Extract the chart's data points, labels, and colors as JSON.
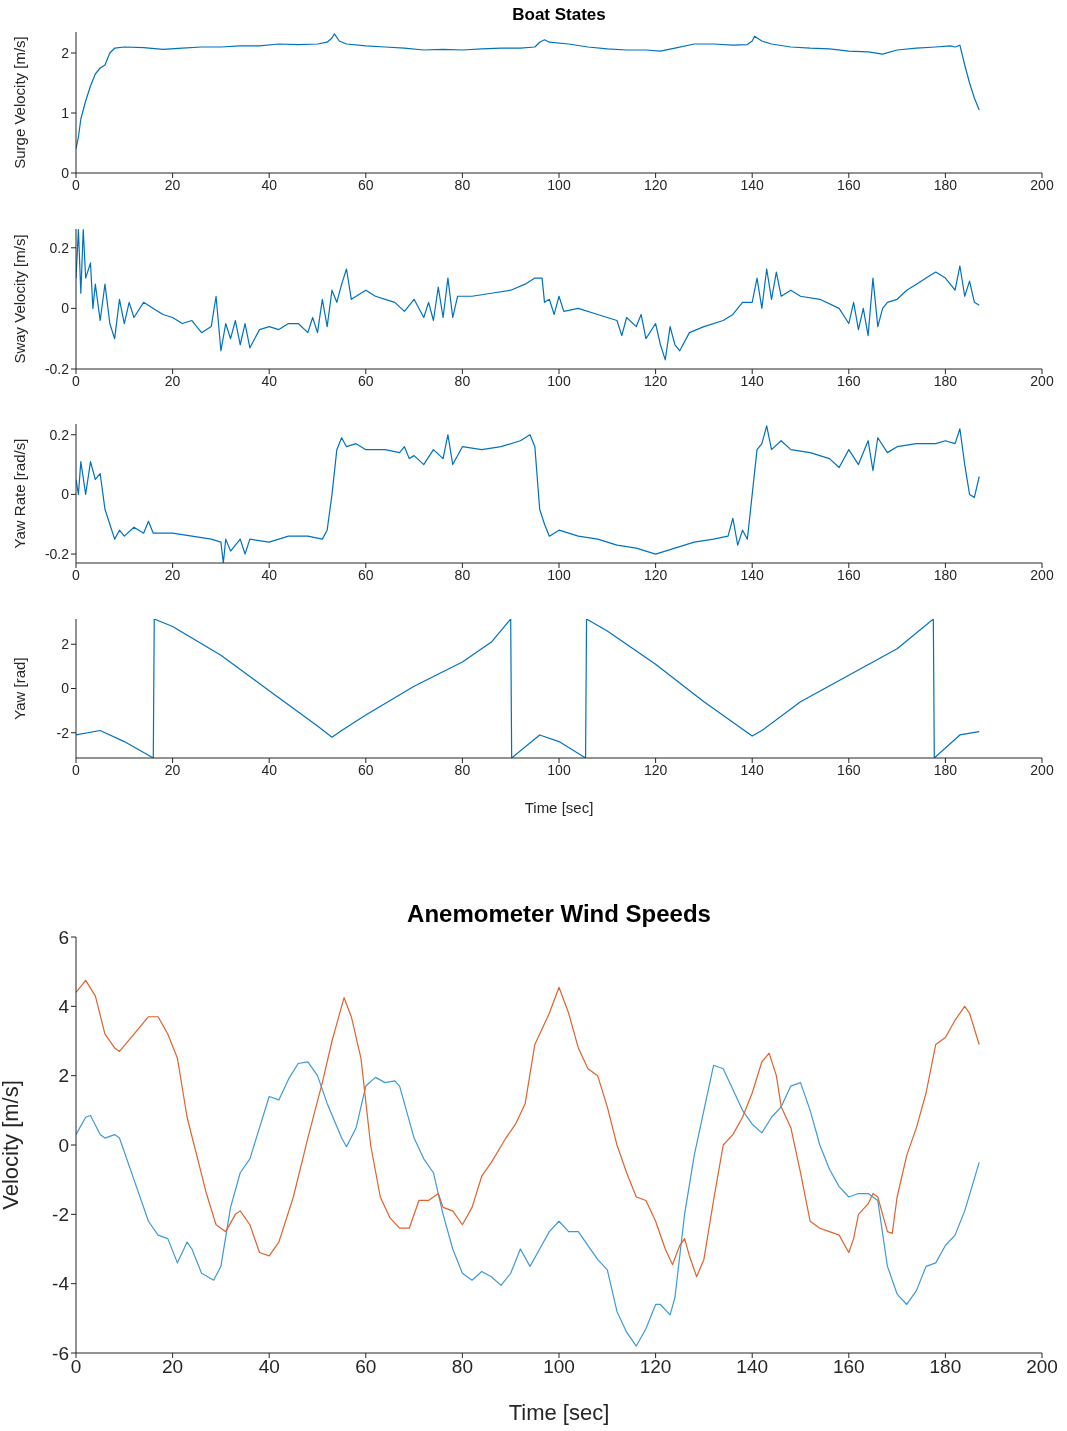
{
  "chart_data": [
    {
      "type": "line",
      "title": "Boat States",
      "ylabel": "Surge Velocity [m/s]",
      "xlim": [
        0,
        200
      ],
      "xticks": [
        0,
        20,
        40,
        60,
        80,
        100,
        120,
        140,
        160,
        180,
        200
      ],
      "ylim": [
        0,
        2.35
      ],
      "yticks": [
        0,
        1,
        2
      ],
      "x": [
        0,
        0.5,
        1,
        2,
        3,
        4,
        5,
        6,
        7,
        8,
        10,
        14,
        18,
        22,
        26,
        30,
        34,
        38,
        42,
        46,
        50,
        52,
        53,
        53.5,
        54.5,
        56,
        60,
        64,
        68,
        72,
        76,
        80,
        84,
        88,
        92,
        95,
        96,
        97,
        98,
        102,
        106,
        110,
        114,
        118,
        121,
        124,
        128,
        132,
        136,
        139,
        140,
        140.5,
        142,
        144,
        148,
        152,
        156,
        160,
        164,
        167,
        170,
        174,
        178,
        181,
        182,
        183,
        184,
        185,
        186,
        187
      ],
      "series": [
        {
          "color": "#0072bd",
          "values": [
            0.4,
            0.6,
            0.9,
            1.2,
            1.45,
            1.65,
            1.75,
            1.8,
            2.0,
            2.08,
            2.1,
            2.09,
            2.06,
            2.08,
            2.1,
            2.1,
            2.12,
            2.12,
            2.15,
            2.14,
            2.15,
            2.18,
            2.25,
            2.32,
            2.2,
            2.15,
            2.12,
            2.1,
            2.08,
            2.05,
            2.06,
            2.05,
            2.07,
            2.08,
            2.08,
            2.1,
            2.18,
            2.22,
            2.18,
            2.15,
            2.1,
            2.07,
            2.05,
            2.05,
            2.03,
            2.08,
            2.15,
            2.15,
            2.13,
            2.14,
            2.2,
            2.28,
            2.2,
            2.15,
            2.1,
            2.08,
            2.07,
            2.03,
            2.02,
            1.98,
            2.05,
            2.08,
            2.1,
            2.12,
            2.1,
            2.13,
            1.8,
            1.5,
            1.25,
            1.05
          ]
        }
      ]
    },
    {
      "type": "line",
      "ylabel": "Sway Velocity [m/s]",
      "xlim": [
        0,
        200
      ],
      "xticks": [
        0,
        20,
        40,
        60,
        80,
        100,
        120,
        140,
        160,
        180,
        200
      ],
      "ylim": [
        -0.2,
        0.262
      ],
      "yticks": [
        -0.2,
        0,
        0.2
      ],
      "x": [
        0,
        0.5,
        1,
        1.5,
        2,
        3,
        3.5,
        4,
        5,
        6,
        7,
        8,
        9,
        10,
        11,
        12,
        14,
        16,
        18,
        20,
        22,
        24,
        26,
        28,
        29,
        30,
        31,
        32,
        33,
        34,
        35,
        36,
        38,
        40,
        42,
        44,
        46,
        48,
        49,
        50,
        51,
        52,
        53,
        54,
        55,
        56,
        57,
        60,
        62,
        64,
        66,
        68,
        70,
        72,
        73,
        74,
        75,
        76,
        77,
        78,
        79,
        82,
        86,
        90,
        93,
        95,
        96.5,
        97,
        98,
        99,
        100,
        101,
        104,
        108,
        112,
        113,
        114,
        116,
        117,
        118,
        120,
        121,
        122,
        123,
        124,
        125,
        127,
        130,
        134,
        136,
        138,
        140,
        141,
        142,
        143,
        144,
        145,
        146,
        148,
        150,
        154,
        158,
        160,
        161,
        162,
        163,
        164,
        165,
        166,
        167,
        168,
        170,
        172,
        174,
        176,
        178,
        180,
        182,
        183,
        184,
        185,
        186,
        187
      ],
      "series": [
        {
          "color": "#0072bd",
          "values": [
            0.1,
            0.26,
            0.05,
            0.26,
            0.1,
            0.15,
            0.0,
            0.08,
            -0.04,
            0.08,
            -0.05,
            -0.1,
            0.03,
            -0.05,
            0.02,
            -0.03,
            0.02,
            0.0,
            -0.02,
            -0.03,
            -0.05,
            -0.04,
            -0.08,
            -0.06,
            0.04,
            -0.14,
            -0.05,
            -0.1,
            -0.04,
            -0.12,
            -0.05,
            -0.13,
            -0.07,
            -0.06,
            -0.07,
            -0.05,
            -0.05,
            -0.08,
            -0.03,
            -0.08,
            0.03,
            -0.06,
            0.06,
            0.02,
            0.08,
            0.13,
            0.03,
            0.06,
            0.04,
            0.03,
            0.02,
            -0.01,
            0.03,
            -0.03,
            0.02,
            -0.04,
            0.07,
            -0.03,
            0.1,
            -0.03,
            0.04,
            0.04,
            0.05,
            0.06,
            0.08,
            0.1,
            0.1,
            0.02,
            0.03,
            -0.02,
            0.04,
            -0.01,
            0.0,
            -0.02,
            -0.04,
            -0.09,
            -0.03,
            -0.06,
            -0.02,
            -0.1,
            -0.05,
            -0.12,
            -0.17,
            -0.06,
            -0.12,
            -0.14,
            -0.08,
            -0.06,
            -0.04,
            -0.02,
            0.02,
            0.02,
            0.1,
            0.0,
            0.13,
            0.03,
            0.12,
            0.04,
            0.06,
            0.04,
            0.03,
            0.0,
            -0.05,
            0.02,
            -0.07,
            0.0,
            -0.09,
            0.1,
            -0.06,
            0.0,
            0.02,
            0.03,
            0.06,
            0.08,
            0.1,
            0.12,
            0.1,
            0.06,
            0.14,
            0.04,
            0.09,
            0.02,
            0.01
          ]
        }
      ]
    },
    {
      "type": "line",
      "ylabel": "Yaw Rate [rad/s]",
      "xlim": [
        0,
        200
      ],
      "xticks": [
        0,
        20,
        40,
        60,
        80,
        100,
        120,
        140,
        160,
        180,
        200
      ],
      "ylim": [
        -0.23,
        0.236
      ],
      "yticks": [
        -0.2,
        0,
        0.2
      ],
      "x": [
        0,
        0.5,
        1,
        2,
        3,
        4,
        5,
        6,
        7,
        8,
        9,
        10,
        12,
        14,
        15,
        16,
        20,
        24,
        28,
        30,
        30.5,
        31,
        32,
        34,
        35,
        36,
        40,
        44,
        48,
        51,
        52,
        53,
        54,
        55,
        56,
        58,
        60,
        64,
        67,
        68,
        69,
        70,
        72,
        74,
        76,
        77,
        78,
        80,
        84,
        88,
        92,
        94,
        95,
        96,
        97,
        98,
        100,
        104,
        108,
        112,
        116,
        120,
        124,
        128,
        132,
        135,
        136,
        137,
        138,
        139,
        140,
        141,
        142,
        143,
        144,
        146,
        148,
        152,
        156,
        158,
        160,
        162,
        164,
        165,
        166,
        168,
        170,
        174,
        178,
        180,
        182,
        183,
        184,
        185,
        186,
        187
      ],
      "series": [
        {
          "color": "#0072bd",
          "values": [
            0.05,
            0.0,
            0.11,
            0.0,
            0.11,
            0.05,
            0.07,
            -0.05,
            -0.1,
            -0.15,
            -0.12,
            -0.14,
            -0.11,
            -0.13,
            -0.09,
            -0.13,
            -0.13,
            -0.14,
            -0.15,
            -0.16,
            -0.23,
            -0.15,
            -0.19,
            -0.15,
            -0.2,
            -0.15,
            -0.16,
            -0.14,
            -0.14,
            -0.15,
            -0.12,
            0.0,
            0.15,
            0.19,
            0.16,
            0.17,
            0.15,
            0.15,
            0.14,
            0.16,
            0.12,
            0.13,
            0.1,
            0.15,
            0.12,
            0.2,
            0.1,
            0.16,
            0.15,
            0.16,
            0.18,
            0.2,
            0.16,
            -0.05,
            -0.1,
            -0.14,
            -0.12,
            -0.14,
            -0.15,
            -0.17,
            -0.18,
            -0.2,
            -0.18,
            -0.16,
            -0.15,
            -0.14,
            -0.08,
            -0.17,
            -0.12,
            -0.15,
            0.0,
            0.15,
            0.17,
            0.23,
            0.15,
            0.18,
            0.15,
            0.14,
            0.12,
            0.09,
            0.15,
            0.1,
            0.18,
            0.08,
            0.19,
            0.14,
            0.16,
            0.17,
            0.17,
            0.18,
            0.17,
            0.22,
            0.1,
            0.0,
            -0.01,
            0.06
          ]
        }
      ]
    },
    {
      "type": "line",
      "ylabel": "Yaw [rad]",
      "xlabel": "Time [sec]",
      "xlim": [
        0,
        200
      ],
      "xticks": [
        0,
        20,
        40,
        60,
        80,
        100,
        120,
        140,
        160,
        180,
        200
      ],
      "ylim": [
        -3.1416,
        3.1416
      ],
      "yticks": [
        -2,
        0,
        2
      ],
      "x": [
        0,
        5,
        10,
        16,
        16.2,
        20,
        30,
        40,
        50,
        53,
        55,
        60,
        70,
        80,
        86,
        90,
        90.2,
        96,
        100,
        105.5,
        105.7,
        110,
        120,
        130,
        140,
        142,
        150,
        160,
        170,
        177.5,
        177.7,
        183,
        187
      ],
      "series": [
        {
          "color": "#0072bd",
          "values": [
            -2.1,
            -1.9,
            -2.4,
            -3.14,
            3.14,
            2.8,
            1.5,
            -0.1,
            -1.7,
            -2.2,
            -1.9,
            -1.2,
            0.1,
            1.2,
            2.1,
            3.14,
            -3.14,
            -2.1,
            -2.4,
            -3.14,
            3.14,
            2.6,
            1.1,
            -0.6,
            -2.15,
            -1.9,
            -0.6,
            0.6,
            1.8,
            3.14,
            -3.14,
            -2.1,
            -1.95
          ]
        }
      ]
    },
    {
      "type": "line",
      "title": "Anemometer Wind Speeds",
      "ylabel": "Velocity [m/s]",
      "xlabel": "Time [sec]",
      "xlim": [
        0,
        200
      ],
      "xticks": [
        0,
        20,
        40,
        60,
        80,
        100,
        120,
        140,
        160,
        180,
        200
      ],
      "ylim": [
        -6,
        6
      ],
      "yticks": [
        -6,
        -4,
        -2,
        0,
        2,
        4,
        6
      ],
      "series": [
        {
          "color": "#3e9ad6",
          "x": [
            0,
            2,
            3,
            5,
            6,
            8,
            9,
            12,
            15,
            17,
            19,
            21,
            22,
            23,
            24,
            26,
            28.5,
            30,
            32,
            34,
            36,
            38,
            40,
            42,
            44,
            46,
            48,
            50,
            52,
            55,
            56,
            58,
            60,
            62,
            64,
            66,
            67,
            70,
            72,
            74,
            76,
            78,
            80,
            82,
            84,
            86,
            88,
            90,
            92,
            94,
            96,
            98,
            100,
            102,
            104,
            106,
            108,
            110,
            112,
            114,
            116,
            118,
            120,
            121,
            123,
            124,
            126,
            128,
            130,
            132,
            134,
            136,
            138,
            140,
            142,
            144,
            146,
            148,
            150,
            152,
            154,
            156,
            158,
            160,
            162,
            164,
            166,
            168,
            170,
            172,
            174,
            176,
            178,
            180,
            182,
            184,
            187
          ],
          "values": [
            0.3,
            0.8,
            0.85,
            0.3,
            0.2,
            0.3,
            0.2,
            -1.0,
            -2.2,
            -2.6,
            -2.7,
            -3.4,
            -3.1,
            -2.8,
            -3.0,
            -3.7,
            -3.9,
            -3.5,
            -1.8,
            -0.8,
            -0.4,
            0.5,
            1.4,
            1.3,
            1.9,
            2.35,
            2.4,
            2.0,
            1.2,
            0.2,
            -0.05,
            0.5,
            1.7,
            1.95,
            1.8,
            1.85,
            1.7,
            0.2,
            -0.4,
            -0.8,
            -2.0,
            -3.0,
            -3.7,
            -3.9,
            -3.65,
            -3.8,
            -4.05,
            -3.7,
            -3.0,
            -3.5,
            -3.0,
            -2.5,
            -2.2,
            -2.5,
            -2.5,
            -2.9,
            -3.3,
            -3.6,
            -4.8,
            -5.4,
            -5.8,
            -5.3,
            -4.6,
            -4.6,
            -4.9,
            -4.4,
            -2.0,
            -0.3,
            1.0,
            2.3,
            2.2,
            1.6,
            1.0,
            0.6,
            0.35,
            0.8,
            1.1,
            1.7,
            1.8,
            1.0,
            0.0,
            -0.7,
            -1.2,
            -1.5,
            -1.4,
            -1.4,
            -1.6,
            -3.5,
            -4.3,
            -4.6,
            -4.2,
            -3.5,
            -3.4,
            -2.9,
            -2.6,
            -1.9,
            -0.5
          ]
        },
        {
          "color": "#e0622c",
          "x": [
            0,
            2,
            4,
            6,
            8,
            9,
            12,
            15,
            17,
            19,
            21,
            23,
            25,
            27,
            29,
            31,
            33,
            34,
            36,
            38,
            40,
            42,
            45,
            48,
            51,
            53,
            55.5,
            57,
            59,
            61,
            63,
            65,
            67,
            69,
            71,
            73,
            75,
            76,
            78,
            80,
            82,
            84,
            86,
            89,
            91,
            93,
            95,
            98,
            100,
            102,
            104,
            106,
            108,
            110,
            112,
            114,
            116,
            118,
            120,
            122,
            123.5,
            125,
            126,
            127,
            128.5,
            130,
            132,
            134,
            136,
            138,
            140,
            142,
            143.5,
            145,
            146,
            148,
            150,
            152,
            154,
            156,
            158,
            160,
            161,
            162,
            164,
            165,
            166,
            168,
            169,
            170,
            172,
            174,
            176,
            178,
            180,
            182,
            184,
            185,
            187
          ],
          "values": [
            4.4,
            4.75,
            4.3,
            3.2,
            2.8,
            2.7,
            3.2,
            3.7,
            3.7,
            3.2,
            2.5,
            0.8,
            -0.3,
            -1.4,
            -2.3,
            -2.5,
            -2.0,
            -1.9,
            -2.3,
            -3.1,
            -3.2,
            -2.8,
            -1.5,
            0.2,
            1.8,
            3.0,
            4.25,
            3.7,
            2.5,
            0.0,
            -1.5,
            -2.1,
            -2.4,
            -2.4,
            -1.6,
            -1.6,
            -1.4,
            -1.8,
            -1.9,
            -2.3,
            -1.8,
            -0.9,
            -0.5,
            0.2,
            0.6,
            1.2,
            2.9,
            3.8,
            4.55,
            3.8,
            2.8,
            2.2,
            2.0,
            1.1,
            0.0,
            -0.8,
            -1.5,
            -1.6,
            -2.2,
            -3.0,
            -3.45,
            -2.9,
            -2.7,
            -3.2,
            -3.8,
            -3.3,
            -1.6,
            0.0,
            0.3,
            0.8,
            1.5,
            2.4,
            2.65,
            2.0,
            1.1,
            0.5,
            -0.8,
            -2.2,
            -2.4,
            -2.5,
            -2.6,
            -3.1,
            -2.7,
            -2.0,
            -1.7,
            -1.4,
            -1.5,
            -2.5,
            -2.55,
            -1.5,
            -0.3,
            0.5,
            1.5,
            2.9,
            3.1,
            3.6,
            4.0,
            3.8,
            2.9
          ]
        }
      ]
    }
  ]
}
